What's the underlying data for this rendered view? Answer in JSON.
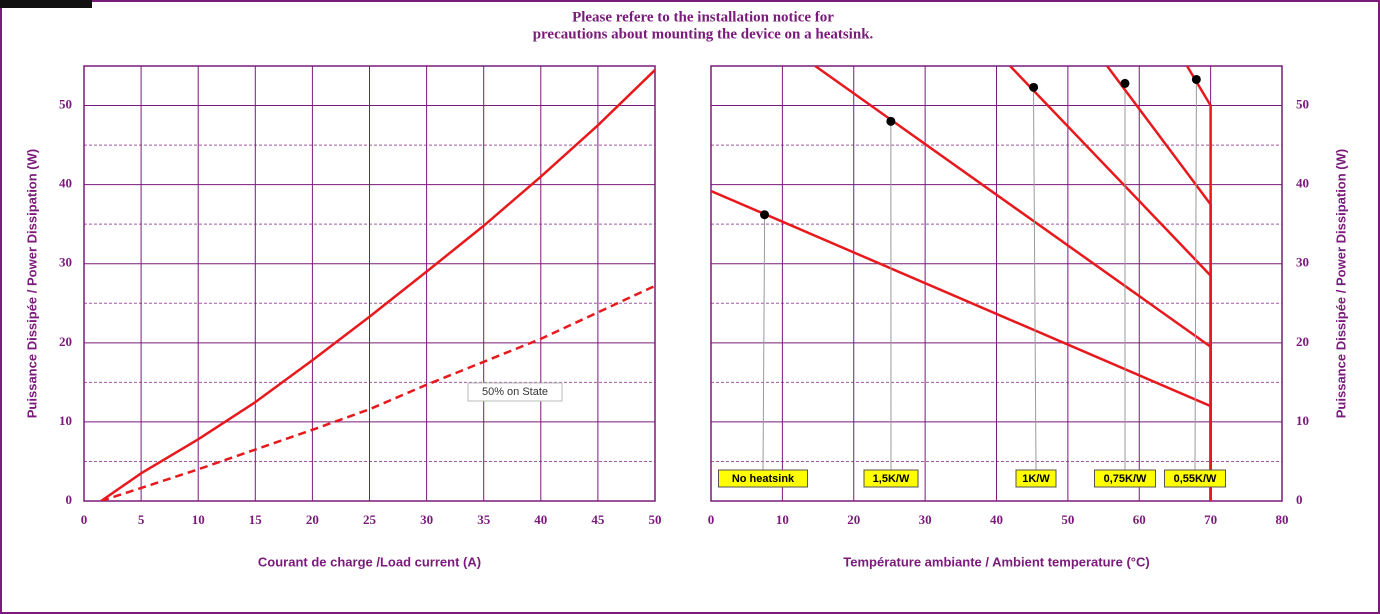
{
  "header": {
    "lines": [
      "Please refere to the installation notice for",
      "precautions about mounting the device on a heatsink."
    ]
  },
  "chart_data": [
    {
      "type": "line",
      "xlabel": "Courant de charge /Load current (A)",
      "ylabel": "Puissance Dissipée / Power Dissipation (W)",
      "xlim": [
        0,
        50
      ],
      "xticks": [
        0,
        5,
        10,
        15,
        20,
        25,
        30,
        35,
        40,
        45,
        50
      ],
      "ylim": [
        0,
        55
      ],
      "yticks": [
        0,
        10,
        20,
        30,
        40,
        50
      ],
      "minor_yticks": [
        5,
        15,
        25,
        35,
        45
      ],
      "yaxis_side": "left",
      "grid": true,
      "annotation": "50% on State",
      "series": [
        {
          "color": "#e8191d",
          "dashed": false,
          "x": [
            1.5,
            5,
            10,
            15,
            20,
            25,
            30,
            35,
            40,
            45,
            50
          ],
          "values": [
            0,
            3.5,
            7.8,
            12.5,
            17.8,
            23.3,
            29,
            34.8,
            41,
            47.5,
            54.5
          ]
        },
        {
          "color": "#e8191d",
          "dashed": true,
          "x": [
            1.5,
            10,
            20,
            25,
            30,
            40,
            50
          ],
          "values": [
            0,
            4,
            9,
            11.6,
            14.7,
            20.5,
            27.2
          ]
        }
      ]
    },
    {
      "type": "line",
      "xlabel": "Température ambiante / Ambient temperature (°C)",
      "ylabel": "Puissance Dissipée / Power Dissipation (W)",
      "xlim": [
        0,
        80
      ],
      "xticks": [
        0,
        10,
        20,
        30,
        40,
        50,
        60,
        70,
        80
      ],
      "ylim": [
        0,
        55
      ],
      "yticks": [
        0,
        10,
        20,
        30,
        40,
        50
      ],
      "minor_yticks": [
        5,
        15,
        25,
        35,
        45
      ],
      "yaxis_side": "right",
      "grid": true,
      "series": [
        {
          "name": "No heatsink",
          "color": "#e8191d",
          "dashed": false,
          "x": [
            0,
            70,
            70
          ],
          "values": [
            39.2,
            12,
            0
          ],
          "point": {
            "x": 7.5,
            "y": 36.2
          }
        },
        {
          "name": "1,5K/W",
          "color": "#e8191d",
          "dashed": false,
          "x": [
            14.6,
            70,
            70
          ],
          "values": [
            55,
            19.5,
            0
          ],
          "point": {
            "x": 25.2,
            "y": 48
          }
        },
        {
          "name": "1K/W",
          "color": "#e8191d",
          "dashed": false,
          "x": [
            41.9,
            70,
            70
          ],
          "values": [
            55,
            28.5,
            0
          ],
          "point": {
            "x": 45.2,
            "y": 52.3
          }
        },
        {
          "name": "0,75K/W",
          "color": "#e8191d",
          "dashed": false,
          "x": [
            55.5,
            70,
            70
          ],
          "values": [
            55,
            37.5,
            0
          ],
          "point": {
            "x": 58,
            "y": 52.8
          }
        },
        {
          "name": "0,55K/W",
          "color": "#e8191d",
          "dashed": false,
          "x": [
            66.7,
            70,
            70
          ],
          "values": [
            55,
            50,
            0
          ],
          "point": {
            "x": 68,
            "y": 53.3
          }
        }
      ]
    }
  ]
}
